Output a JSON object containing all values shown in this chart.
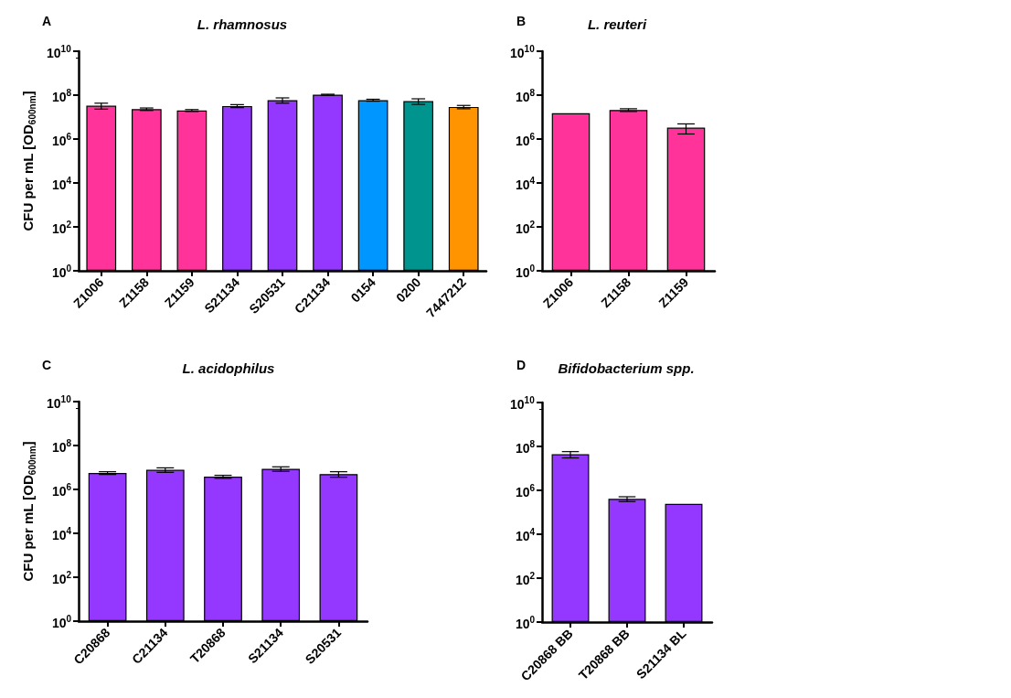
{
  "chart_data": [
    {
      "type": "bar",
      "title": "L. rhamnosus",
      "annotations": [
        "A"
      ],
      "ylabel": "CFU per mL [OD$_{600nm}$]",
      "log": true,
      "grid": false,
      "categories": [
        "Z1006",
        "Z1158",
        "Z1159",
        "S21134",
        "S20531",
        "C21134",
        "0154",
        "0200",
        "7447212"
      ],
      "values": [
        33000000,
        23000000,
        20000000,
        32000000,
        59000000,
        105000000,
        59000000,
        53000000,
        29000000
      ],
      "errors": [
        10000000,
        3000000,
        2000000,
        5000000,
        16000000,
        5000000,
        6000000,
        15000000,
        5000000
      ],
      "colors": [
        "#ff3399",
        "#ff3399",
        "#ff3399",
        "#9437ff",
        "#9437ff",
        "#9437ff",
        "#0096ff",
        "#00948f",
        "#ff9300"
      ],
      "ylim": [
        1,
        10000000000
      ],
      "yticks": [
        {
          "value": 1,
          "label": "10$^{0}$"
        },
        {
          "value": 100,
          "label": "10$^{2}$"
        },
        {
          "value": 10000,
          "label": "10$^{4}$"
        },
        {
          "value": 1000000,
          "label": "10$^{6}$"
        },
        {
          "value": 100000000,
          "label": "10$^{8}$"
        },
        {
          "value": 10000000000,
          "label": "10$^{10}$"
        }
      ]
    },
    {
      "type": "bar",
      "title": "L. reuteri",
      "annotations": [
        "B"
      ],
      "log": true,
      "grid": false,
      "categories": [
        "Z1006",
        "Z1158",
        "Z1159"
      ],
      "values": [
        15000000,
        21000000,
        3300000
      ],
      "errors": [
        null,
        3000000,
        1600000
      ],
      "colors": [
        "#ff3399",
        "#ff3399",
        "#ff3399"
      ],
      "ylim": [
        1,
        10000000000
      ],
      "yticks": [
        {
          "value": 1,
          "label": "10$^{0}$"
        },
        {
          "value": 100,
          "label": "10$^{2}$"
        },
        {
          "value": 10000,
          "label": "10$^{4}$"
        },
        {
          "value": 1000000,
          "label": "10$^{6}$"
        },
        {
          "value": 100000000,
          "label": "10$^{8}$"
        },
        {
          "value": 10000000000,
          "label": "10$^{10}$"
        }
      ]
    },
    {
      "type": "bar",
      "title": "L. acidophilus",
      "annotations": [
        "C"
      ],
      "ylabel": "CFU per mL [OD$_{600nm}$]",
      "log": true,
      "grid": false,
      "categories": [
        "C20868",
        "C21134",
        "T20868",
        "S21134",
        "S20531"
      ],
      "values": [
        5600000,
        7800000,
        3800000,
        8700000,
        5000000
      ],
      "errors": [
        800000,
        1800000,
        600000,
        2000000,
        1400000
      ],
      "colors": [
        "#9437ff",
        "#9437ff",
        "#9437ff",
        "#9437ff",
        "#9437ff"
      ],
      "ylim": [
        1,
        10000000000
      ],
      "yticks": [
        {
          "value": 1,
          "label": "10$^{0}$"
        },
        {
          "value": 100,
          "label": "10$^{2}$"
        },
        {
          "value": 10000,
          "label": "10$^{4}$"
        },
        {
          "value": 1000000,
          "label": "10$^{6}$"
        },
        {
          "value": 100000000,
          "label": "10$^{8}$"
        },
        {
          "value": 10000000000,
          "label": "10$^{10}$"
        }
      ]
    },
    {
      "type": "bar",
      "title": "Bifidobacterium spp.",
      "annotations": [
        "D"
      ],
      "log": true,
      "grid": false,
      "categories": [
        "C20868 BB",
        "T20868 BB",
        "S21134 BL"
      ],
      "values": [
        44000000,
        410000,
        240000
      ],
      "errors": [
        14000000,
        100000,
        null
      ],
      "colors": [
        "#9437ff",
        "#9437ff",
        "#9437ff"
      ],
      "ylim": [
        1,
        10000000000
      ],
      "yticks": [
        {
          "value": 1,
          "label": "10$^{0}$"
        },
        {
          "value": 100,
          "label": "10$^{2}$"
        },
        {
          "value": 10000,
          "label": "10$^{4}$"
        },
        {
          "value": 1000000,
          "label": "10$^{6}$"
        },
        {
          "value": 100000000,
          "label": "10$^{8}$"
        },
        {
          "value": 10000000000,
          "label": "10$^{10}$"
        }
      ]
    }
  ]
}
